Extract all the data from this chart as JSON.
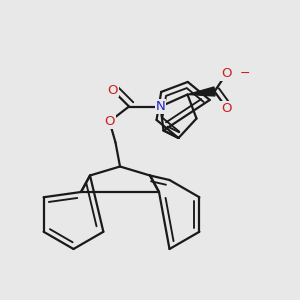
{
  "background_color": "#e8e8e8",
  "bond_color": "#1a1a1a",
  "bond_width": 1.6,
  "N_color": "#2020cc",
  "O_color": "#cc2020",
  "figsize": [
    3.0,
    3.0
  ],
  "dpi": 100,
  "xlim": [
    0.0,
    1.0
  ],
  "ylim": [
    0.0,
    1.0
  ]
}
